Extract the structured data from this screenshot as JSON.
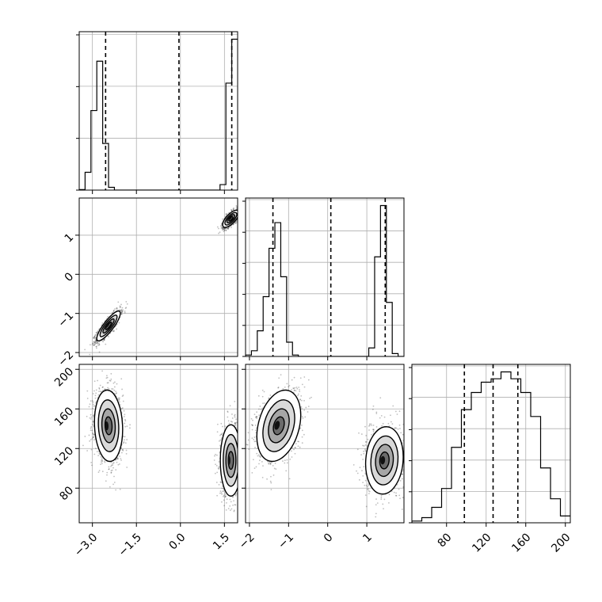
{
  "chart_data": {
    "type": "corner",
    "title": "",
    "parameters": [
      "",
      "",
      ""
    ],
    "ranges": {
      "p0": [
        -3.45,
        1.95
      ],
      "p1": [
        -2.1,
        1.95
      ],
      "p2": [
        45,
        205
      ]
    },
    "grid": true,
    "ticks": {
      "p0": [
        -3.0,
        -1.5,
        0.0,
        1.5
      ],
      "p1": [
        -2,
        -1,
        0,
        1
      ],
      "p2": [
        80,
        120,
        160,
        200
      ]
    },
    "tick_labels": {
      "p0": [
        "−3.0",
        "−1.5",
        "0.0",
        "1.5"
      ],
      "p1": [
        "−2",
        "−1",
        "0",
        "1"
      ],
      "p2": [
        "80",
        "120",
        "160",
        "200"
      ]
    },
    "quantiles": {
      "p0": [
        -2.55,
        -0.05,
        1.75
      ],
      "p1": [
        -1.4,
        0.08,
        1.47
      ],
      "p2": [
        98,
        127,
        152
      ]
    },
    "histograms": {
      "p0": {
        "bins": [
          -3.45,
          -3.25,
          -3.05,
          -2.85,
          -2.65,
          -2.45,
          -2.25,
          -2.05,
          -1.85,
          -1.65,
          -1.45,
          -1.25,
          -1.05,
          -0.85,
          -0.65,
          -0.45,
          -0.25,
          -0.05,
          0.15,
          0.35,
          0.55,
          0.75,
          0.95,
          1.15,
          1.35,
          1.55,
          1.75,
          1.95
        ],
        "counts": [
          0.2,
          6.5,
          29,
          47,
          17,
          1,
          0,
          0,
          0,
          0,
          0,
          0,
          0,
          0,
          0,
          0,
          0,
          0,
          0,
          0,
          0,
          0,
          0,
          0,
          2,
          39,
          55
        ]
      },
      "p1": {
        "bins": [
          -2.1,
          -1.95,
          -1.8,
          -1.65,
          -1.5,
          -1.35,
          -1.2,
          -1.05,
          -0.9,
          -0.75,
          -0.6,
          -0.45,
          -0.3,
          -0.15,
          0.0,
          0.15,
          0.3,
          0.45,
          0.6,
          0.75,
          0.9,
          1.05,
          1.2,
          1.35,
          1.5,
          1.65,
          1.8,
          1.95
        ],
        "counts": [
          0.5,
          2,
          9,
          21,
          38,
          47,
          28,
          5,
          0.5,
          0,
          0,
          0,
          0,
          0,
          0,
          0,
          0,
          0,
          0,
          0,
          0,
          3,
          35,
          53,
          19,
          1,
          0
        ]
      },
      "p2": {
        "bins": [
          45,
          55,
          65,
          75,
          85,
          95,
          105,
          115,
          125,
          135,
          145,
          155,
          165,
          175,
          185,
          195,
          205
        ],
        "counts": [
          0.5,
          1.5,
          4.5,
          10,
          22,
          33,
          38,
          41,
          42,
          44,
          42,
          38,
          31,
          16,
          7,
          2
        ]
      }
    },
    "density_2d": [
      {
        "x_param": "p0",
        "y_param": "p1",
        "clusters": [
          {
            "cx": -2.45,
            "cy": -1.32,
            "sx": 0.2,
            "sy": 0.19,
            "rho": 0.85,
            "n": 1300
          },
          {
            "cx": 1.72,
            "cy": 1.42,
            "sx": 0.14,
            "sy": 0.11,
            "rho": 0.7,
            "n": 1100
          }
        ]
      },
      {
        "x_param": "p0",
        "y_param": "p2",
        "clusters": [
          {
            "cx": -2.45,
            "cy": 143,
            "sx": 0.24,
            "sy": 18,
            "rho": -0.1,
            "n": 1300
          },
          {
            "cx": 1.72,
            "cy": 108,
            "sx": 0.18,
            "sy": 18,
            "rho": 0.0,
            "n": 1100
          }
        ]
      },
      {
        "x_param": "p1",
        "y_param": "p2",
        "clusters": [
          {
            "cx": -1.25,
            "cy": 143,
            "sx": 0.28,
            "sy": 18,
            "rho": 0.3,
            "n": 1300
          },
          {
            "cx": 1.45,
            "cy": 108,
            "sx": 0.24,
            "sy": 17,
            "rho": 0.1,
            "n": 1100
          }
        ]
      }
    ]
  }
}
